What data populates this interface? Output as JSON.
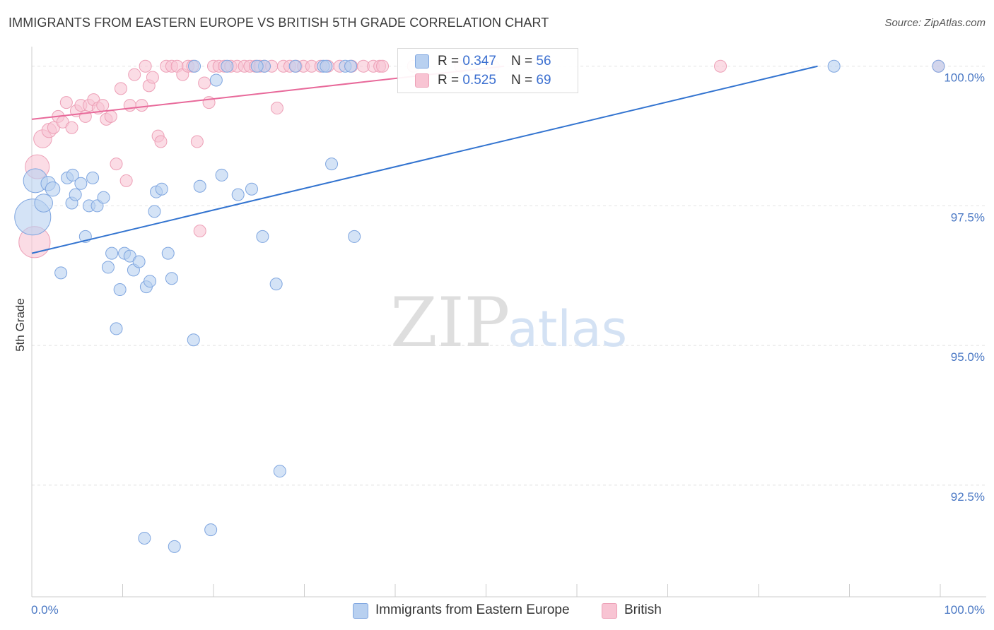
{
  "title": "IMMIGRANTS FROM EASTERN EUROPE VS BRITISH 5TH GRADE CORRELATION CHART",
  "source": "Source: ZipAtlas.com",
  "watermark": {
    "zip": "ZIP",
    "atlas": "atlas"
  },
  "colors": {
    "blue_fill": "#b8d0f0",
    "blue_stroke": "#7fa6e0",
    "blue_line": "#3374d0",
    "pink_fill": "#f8c4d3",
    "pink_stroke": "#eda0b7",
    "pink_line": "#e8699a",
    "grid": "#e2e2e2",
    "tick_text": "#4a78c4"
  },
  "legend": {
    "rows": [
      {
        "r_label": "R = ",
        "r_value": "0.347",
        "n_label": "N = ",
        "n_value": "56"
      },
      {
        "r_label": "R = ",
        "r_value": "0.525",
        "n_label": "N = ",
        "n_value": "69"
      }
    ]
  },
  "chart_data": {
    "type": "scatter",
    "title": "IMMIGRANTS FROM EASTERN EUROPE VS BRITISH 5TH GRADE CORRELATION CHART",
    "xlabel": "",
    "ylabel": "5th Grade",
    "xlim": [
      0,
      100
    ],
    "ylim": [
      90.5,
      100.3
    ],
    "x_tick_labels": [
      "0.0%",
      "100.0%"
    ],
    "y_ticks": [
      92.5,
      95.0,
      97.5,
      100.0
    ],
    "y_tick_labels": [
      "92.5%",
      "95.0%",
      "97.5%",
      "100.0%"
    ],
    "grid": true,
    "legend_position": "top-center",
    "series": [
      {
        "name": "Immigrants from Eastern Europe",
        "color": "#b8d0f0",
        "trend": {
          "x": [
            0,
            86.5
          ],
          "y": [
            96.65,
            100.0
          ]
        },
        "points": [
          [
            0.1,
            97.3,
            3
          ],
          [
            0.4,
            97.95,
            2
          ],
          [
            1.3,
            97.55,
            1.5
          ],
          [
            1.8,
            97.9,
            1.2
          ],
          [
            2.3,
            97.8,
            1.2
          ],
          [
            3.2,
            96.3,
            1
          ],
          [
            3.9,
            98.0,
            1
          ],
          [
            4.5,
            98.05,
            1
          ],
          [
            4.4,
            97.55,
            1
          ],
          [
            4.8,
            97.7,
            1
          ],
          [
            5.4,
            97.9,
            1
          ],
          [
            5.9,
            96.95,
            1
          ],
          [
            6.3,
            97.5,
            1
          ],
          [
            6.7,
            98.0,
            1
          ],
          [
            7.2,
            97.5,
            1
          ],
          [
            7.9,
            97.65,
            1
          ],
          [
            8.4,
            96.4,
            1
          ],
          [
            8.8,
            96.65,
            1
          ],
          [
            9.3,
            95.3,
            1
          ],
          [
            9.7,
            96.0,
            1
          ],
          [
            10.2,
            96.65,
            1
          ],
          [
            10.8,
            96.6,
            1
          ],
          [
            11.2,
            96.35,
            1
          ],
          [
            11.8,
            96.5,
            1
          ],
          [
            12.4,
            91.55,
            1
          ],
          [
            12.6,
            96.05,
            1
          ],
          [
            13.5,
            97.4,
            1
          ],
          [
            13.7,
            97.75,
            1
          ],
          [
            13.0,
            96.15,
            1
          ],
          [
            14.3,
            97.8,
            1
          ],
          [
            15.0,
            96.65,
            1
          ],
          [
            15.4,
            96.2,
            1
          ],
          [
            15.7,
            91.4,
            1
          ],
          [
            17.9,
            100.0,
            1
          ],
          [
            17.8,
            95.1,
            1
          ],
          [
            18.5,
            97.85,
            1
          ],
          [
            19.7,
            91.7,
            1
          ],
          [
            20.3,
            99.75,
            1
          ],
          [
            20.9,
            98.05,
            1
          ],
          [
            21.5,
            100.0,
            1
          ],
          [
            22.7,
            97.7,
            1
          ],
          [
            24.2,
            97.8,
            1
          ],
          [
            25.6,
            100.0,
            1
          ],
          [
            25.4,
            96.95,
            1
          ],
          [
            26.9,
            96.1,
            1
          ],
          [
            27.3,
            92.75,
            1
          ],
          [
            29.0,
            100.0,
            1
          ],
          [
            32.1,
            100.0,
            1
          ],
          [
            32.4,
            100.0,
            1
          ],
          [
            33.0,
            98.25,
            1
          ],
          [
            34.5,
            100.0,
            1
          ],
          [
            35.1,
            100.0,
            1
          ],
          [
            35.5,
            96.95,
            1
          ],
          [
            88.3,
            100.0,
            1
          ],
          [
            99.8,
            100.0,
            1
          ],
          [
            24.8,
            100.0,
            1
          ]
        ]
      },
      {
        "name": "British",
        "color": "#f8c4d3",
        "trend": {
          "x": [
            0,
            52
          ],
          "y": [
            99.05,
            100.0
          ]
        },
        "points": [
          [
            0.3,
            96.85,
            2.6
          ],
          [
            0.6,
            98.2,
            2
          ],
          [
            1.2,
            98.7,
            1.5
          ],
          [
            1.9,
            98.85,
            1.2
          ],
          [
            2.4,
            98.9,
            1
          ],
          [
            2.9,
            99.1,
            1
          ],
          [
            3.4,
            99.0,
            1
          ],
          [
            3.8,
            99.35,
            1
          ],
          [
            4.4,
            98.9,
            1
          ],
          [
            4.9,
            99.2,
            1
          ],
          [
            5.4,
            99.3,
            1
          ],
          [
            5.9,
            99.1,
            1
          ],
          [
            6.3,
            99.3,
            1
          ],
          [
            6.8,
            99.4,
            1
          ],
          [
            7.3,
            99.25,
            1
          ],
          [
            7.8,
            99.3,
            1
          ],
          [
            8.2,
            99.05,
            1
          ],
          [
            8.7,
            99.1,
            1
          ],
          [
            9.3,
            98.25,
            1
          ],
          [
            9.8,
            99.6,
            1
          ],
          [
            10.4,
            97.95,
            1
          ],
          [
            10.8,
            99.3,
            1
          ],
          [
            11.3,
            99.85,
            1
          ],
          [
            12.1,
            99.3,
            1
          ],
          [
            12.5,
            100.0,
            1
          ],
          [
            12.9,
            99.65,
            1
          ],
          [
            13.3,
            99.8,
            1
          ],
          [
            13.9,
            98.75,
            1
          ],
          [
            14.2,
            98.65,
            1
          ],
          [
            14.8,
            100.0,
            1
          ],
          [
            15.4,
            100.0,
            1
          ],
          [
            16.0,
            100.0,
            1
          ],
          [
            16.6,
            99.85,
            1
          ],
          [
            17.2,
            100.0,
            1
          ],
          [
            17.7,
            100.0,
            1
          ],
          [
            18.2,
            98.65,
            1
          ],
          [
            18.5,
            97.05,
            1
          ],
          [
            19.0,
            99.7,
            1
          ],
          [
            19.5,
            99.35,
            1
          ],
          [
            20.0,
            100.0,
            1
          ],
          [
            20.6,
            100.0,
            1
          ],
          [
            21.2,
            100.0,
            1
          ],
          [
            21.9,
            100.0,
            1
          ],
          [
            22.6,
            100.0,
            1
          ],
          [
            23.4,
            100.0,
            1
          ],
          [
            24.0,
            100.0,
            1
          ],
          [
            24.6,
            100.0,
            1
          ],
          [
            25.1,
            100.0,
            1
          ],
          [
            25.6,
            100.0,
            1
          ],
          [
            26.4,
            100.0,
            1
          ],
          [
            27.0,
            99.25,
            1
          ],
          [
            27.7,
            100.0,
            1
          ],
          [
            28.4,
            100.0,
            1
          ],
          [
            29.1,
            100.0,
            1
          ],
          [
            29.9,
            100.0,
            1
          ],
          [
            30.8,
            100.0,
            1
          ],
          [
            31.8,
            100.0,
            1
          ],
          [
            32.6,
            100.0,
            1
          ],
          [
            33.9,
            100.0,
            1
          ],
          [
            35.2,
            100.0,
            1
          ],
          [
            36.5,
            100.0,
            1
          ],
          [
            37.6,
            100.0,
            1
          ],
          [
            38.3,
            100.0,
            1
          ],
          [
            38.6,
            100.0,
            1
          ],
          [
            42.0,
            100.0,
            1
          ],
          [
            47.2,
            100.0,
            1
          ],
          [
            50.8,
            100.0,
            1
          ],
          [
            75.8,
            100.0,
            1
          ],
          [
            99.8,
            100.0,
            1
          ]
        ]
      }
    ]
  }
}
